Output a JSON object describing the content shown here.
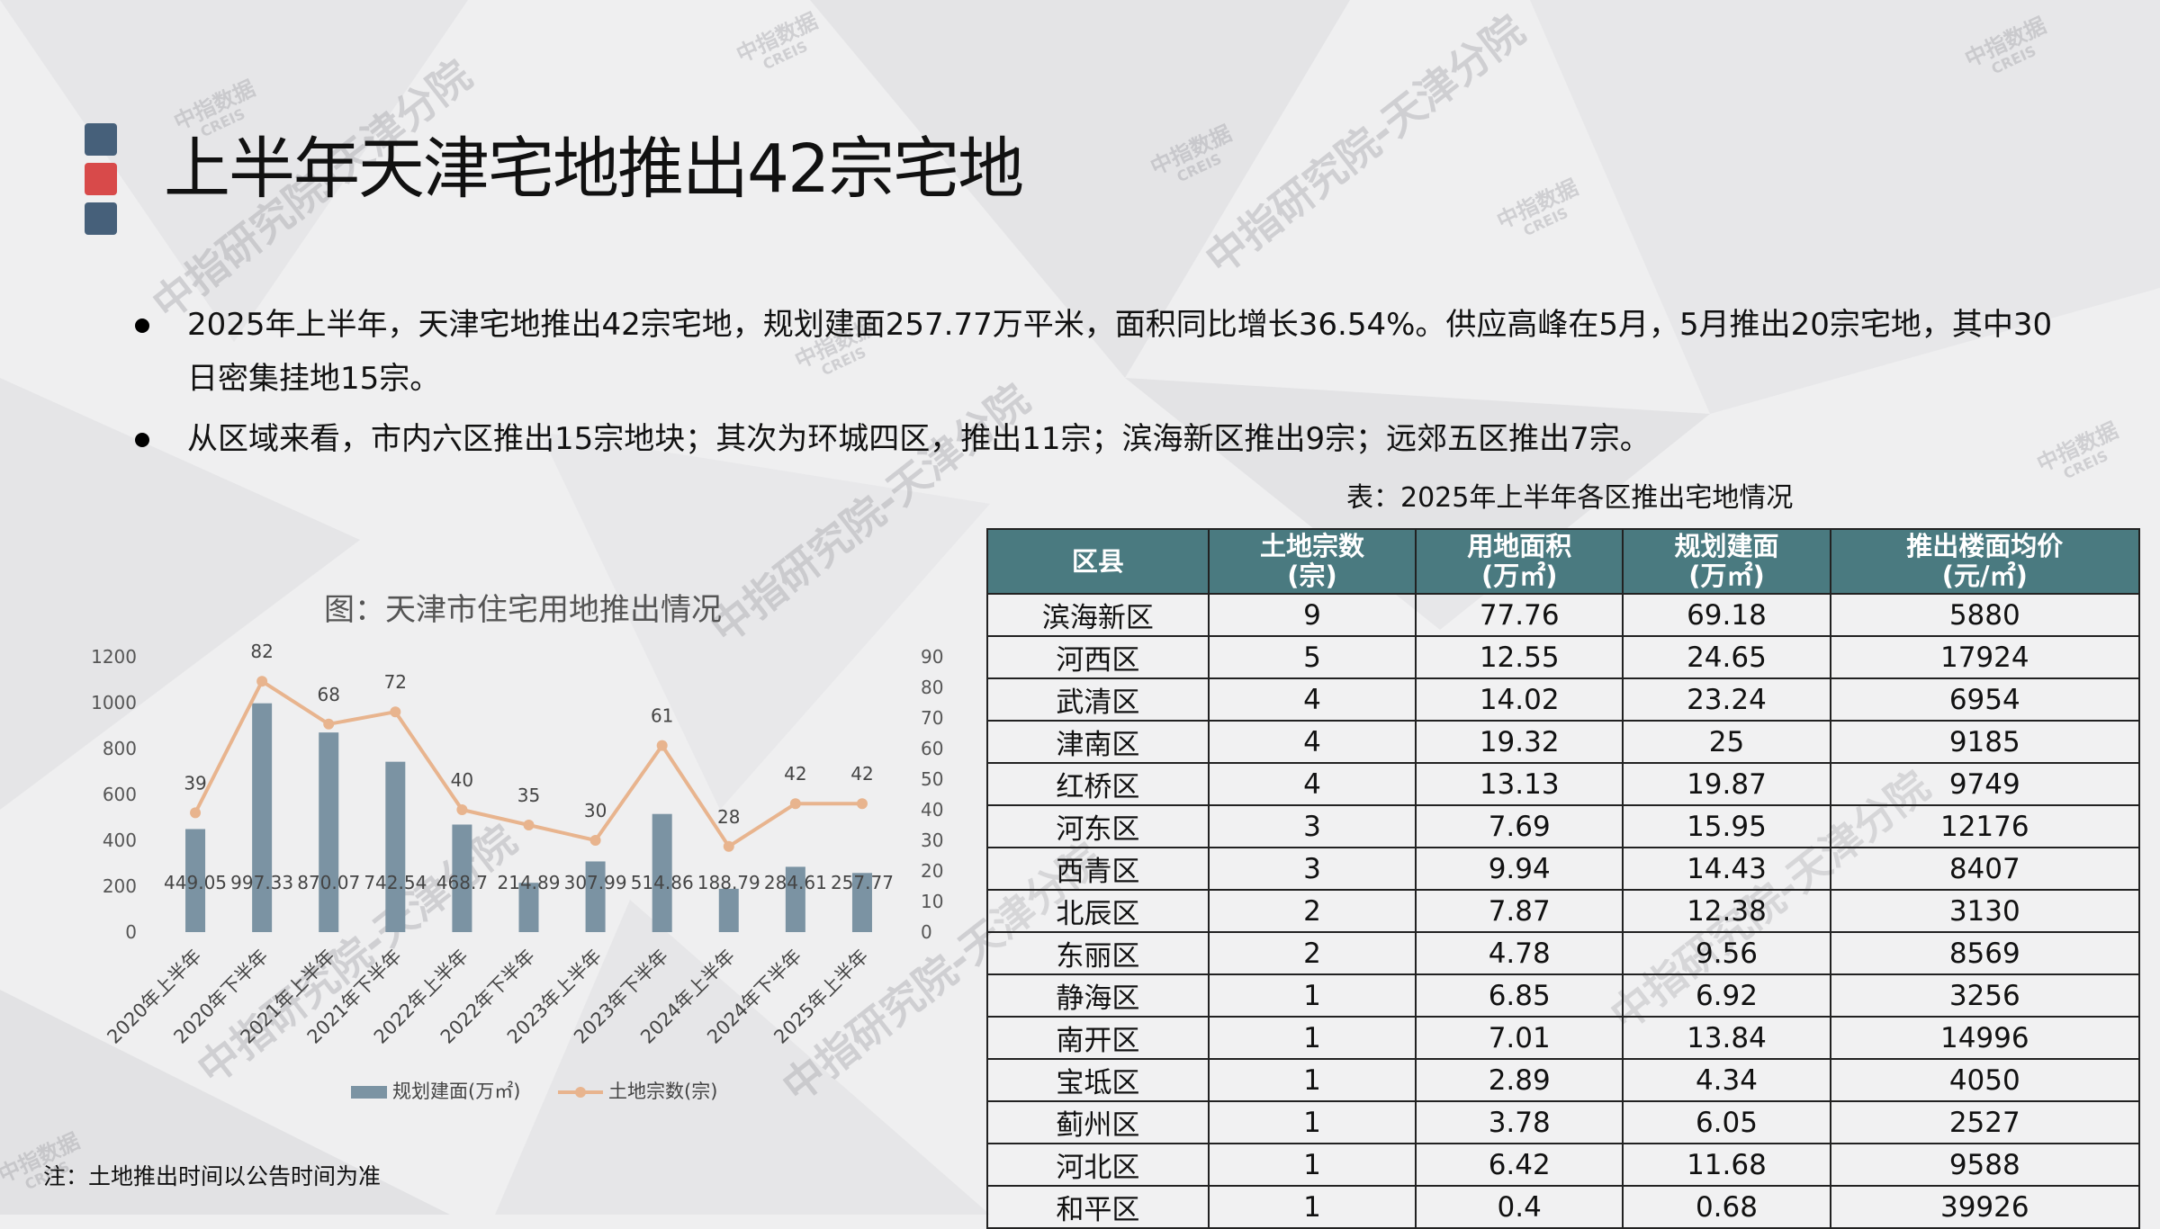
{
  "title": "上半年天津宅地推出42宗宅地",
  "bullets": [
    "2025年上半年，天津宅地推出42宗宅地，规划建面257.77万平米，面积同比增长36.54%。供应高峰在5月，5月推出20宗宅地，其中30日密集挂地15宗。",
    "从区域来看，市内六区推出15宗地块；其次为环城四区，推出11宗；滨海新区推出9宗；远郊五区推出7宗。"
  ],
  "table": {
    "caption": "表：2025年上半年各区推出宅地情况",
    "headers": [
      [
        "区县",
        ""
      ],
      [
        "土地宗数",
        "(宗)"
      ],
      [
        "用地面积",
        "(万㎡)"
      ],
      [
        "规划建面",
        "(万㎡)"
      ],
      [
        "推出楼面均价",
        "(元/㎡)"
      ]
    ],
    "rows": [
      [
        "滨海新区",
        "9",
        "77.76",
        "69.18",
        "5880"
      ],
      [
        "河西区",
        "5",
        "12.55",
        "24.65",
        "17924"
      ],
      [
        "武清区",
        "4",
        "14.02",
        "23.24",
        "6954"
      ],
      [
        "津南区",
        "4",
        "19.32",
        "25",
        "9185"
      ],
      [
        "红桥区",
        "4",
        "13.13",
        "19.87",
        "9749"
      ],
      [
        "河东区",
        "3",
        "7.69",
        "15.95",
        "12176"
      ],
      [
        "西青区",
        "3",
        "9.94",
        "14.43",
        "8407"
      ],
      [
        "北辰区",
        "2",
        "7.87",
        "12.38",
        "3130"
      ],
      [
        "东丽区",
        "2",
        "4.78",
        "9.56",
        "8569"
      ],
      [
        "静海区",
        "1",
        "6.85",
        "6.92",
        "3256"
      ],
      [
        "南开区",
        "1",
        "7.01",
        "13.84",
        "14996"
      ],
      [
        "宝坻区",
        "1",
        "2.89",
        "4.34",
        "4050"
      ],
      [
        "蓟州区",
        "1",
        "3.78",
        "6.05",
        "2527"
      ],
      [
        "河北区",
        "1",
        "6.42",
        "11.68",
        "9588"
      ],
      [
        "和平区",
        "1",
        "0.4",
        "0.68",
        "39926"
      ]
    ]
  },
  "chart_data": {
    "type": "bar+line",
    "title": "图：天津市住宅用地推出情况",
    "categories": [
      "2020年上半年",
      "2020年下半年",
      "2021年上半年",
      "2021年下半年",
      "2022年上半年",
      "2022年下半年",
      "2023年上半年",
      "2023年下半年",
      "2024年上半年",
      "2024年下半年",
      "2025年上半年"
    ],
    "series": [
      {
        "name": "规划建面(万㎡)",
        "type": "bar",
        "axis": "left",
        "color": "#7b93a3",
        "values": [
          449.05,
          997.33,
          870.07,
          742.54,
          468.7,
          214.89,
          307.99,
          514.86,
          188.79,
          284.61,
          257.77
        ]
      },
      {
        "name": "土地宗数(宗)",
        "type": "line",
        "axis": "right",
        "color": "#e8b48e",
        "values": [
          39,
          82,
          68,
          72,
          40,
          35,
          30,
          61,
          28,
          42,
          42
        ]
      }
    ],
    "ylim_left": [
      0,
      1200
    ],
    "yticks_left": [
      0,
      200,
      400,
      600,
      800,
      1000,
      1200
    ],
    "ylim_right": [
      0,
      90
    ],
    "yticks_right": [
      0,
      10,
      20,
      30,
      40,
      50,
      60,
      70,
      80,
      90
    ],
    "legend": "bottom",
    "grid": false
  },
  "footnote": "注：土地推出时间以公告时间为准",
  "watermark": {
    "logo_cn": "中指数据",
    "logo_en": "CREIS",
    "slogan": "中指研究院-天津分院"
  },
  "colors": {
    "square_dark": "#46607a",
    "square_red": "#d84a4a",
    "table_header": "#4a7a80"
  }
}
